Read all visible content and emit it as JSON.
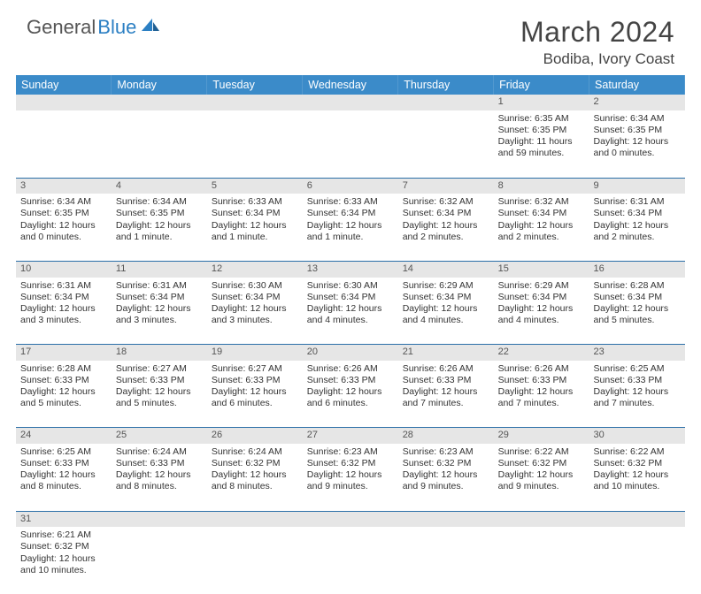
{
  "logo": {
    "part1": "General",
    "part2": "Blue"
  },
  "title": "March 2024",
  "location": "Bodiba, Ivory Coast",
  "colors": {
    "header_bg": "#3b8bc9",
    "header_text": "#ffffff",
    "row_divider": "#2b6fa8",
    "daynum_bg": "#e6e6e6",
    "text": "#333333",
    "logo_gray": "#555555",
    "logo_blue": "#2b7fc3"
  },
  "weekdays": [
    "Sunday",
    "Monday",
    "Tuesday",
    "Wednesday",
    "Thursday",
    "Friday",
    "Saturday"
  ],
  "weeks": [
    [
      null,
      null,
      null,
      null,
      null,
      {
        "n": "1",
        "l1": "Sunrise: 6:35 AM",
        "l2": "Sunset: 6:35 PM",
        "l3": "Daylight: 11 hours",
        "l4": "and 59 minutes."
      },
      {
        "n": "2",
        "l1": "Sunrise: 6:34 AM",
        "l2": "Sunset: 6:35 PM",
        "l3": "Daylight: 12 hours",
        "l4": "and 0 minutes."
      }
    ],
    [
      {
        "n": "3",
        "l1": "Sunrise: 6:34 AM",
        "l2": "Sunset: 6:35 PM",
        "l3": "Daylight: 12 hours",
        "l4": "and 0 minutes."
      },
      {
        "n": "4",
        "l1": "Sunrise: 6:34 AM",
        "l2": "Sunset: 6:35 PM",
        "l3": "Daylight: 12 hours",
        "l4": "and 1 minute."
      },
      {
        "n": "5",
        "l1": "Sunrise: 6:33 AM",
        "l2": "Sunset: 6:34 PM",
        "l3": "Daylight: 12 hours",
        "l4": "and 1 minute."
      },
      {
        "n": "6",
        "l1": "Sunrise: 6:33 AM",
        "l2": "Sunset: 6:34 PM",
        "l3": "Daylight: 12 hours",
        "l4": "and 1 minute."
      },
      {
        "n": "7",
        "l1": "Sunrise: 6:32 AM",
        "l2": "Sunset: 6:34 PM",
        "l3": "Daylight: 12 hours",
        "l4": "and 2 minutes."
      },
      {
        "n": "8",
        "l1": "Sunrise: 6:32 AM",
        "l2": "Sunset: 6:34 PM",
        "l3": "Daylight: 12 hours",
        "l4": "and 2 minutes."
      },
      {
        "n": "9",
        "l1": "Sunrise: 6:31 AM",
        "l2": "Sunset: 6:34 PM",
        "l3": "Daylight: 12 hours",
        "l4": "and 2 minutes."
      }
    ],
    [
      {
        "n": "10",
        "l1": "Sunrise: 6:31 AM",
        "l2": "Sunset: 6:34 PM",
        "l3": "Daylight: 12 hours",
        "l4": "and 3 minutes."
      },
      {
        "n": "11",
        "l1": "Sunrise: 6:31 AM",
        "l2": "Sunset: 6:34 PM",
        "l3": "Daylight: 12 hours",
        "l4": "and 3 minutes."
      },
      {
        "n": "12",
        "l1": "Sunrise: 6:30 AM",
        "l2": "Sunset: 6:34 PM",
        "l3": "Daylight: 12 hours",
        "l4": "and 3 minutes."
      },
      {
        "n": "13",
        "l1": "Sunrise: 6:30 AM",
        "l2": "Sunset: 6:34 PM",
        "l3": "Daylight: 12 hours",
        "l4": "and 4 minutes."
      },
      {
        "n": "14",
        "l1": "Sunrise: 6:29 AM",
        "l2": "Sunset: 6:34 PM",
        "l3": "Daylight: 12 hours",
        "l4": "and 4 minutes."
      },
      {
        "n": "15",
        "l1": "Sunrise: 6:29 AM",
        "l2": "Sunset: 6:34 PM",
        "l3": "Daylight: 12 hours",
        "l4": "and 4 minutes."
      },
      {
        "n": "16",
        "l1": "Sunrise: 6:28 AM",
        "l2": "Sunset: 6:34 PM",
        "l3": "Daylight: 12 hours",
        "l4": "and 5 minutes."
      }
    ],
    [
      {
        "n": "17",
        "l1": "Sunrise: 6:28 AM",
        "l2": "Sunset: 6:33 PM",
        "l3": "Daylight: 12 hours",
        "l4": "and 5 minutes."
      },
      {
        "n": "18",
        "l1": "Sunrise: 6:27 AM",
        "l2": "Sunset: 6:33 PM",
        "l3": "Daylight: 12 hours",
        "l4": "and 5 minutes."
      },
      {
        "n": "19",
        "l1": "Sunrise: 6:27 AM",
        "l2": "Sunset: 6:33 PM",
        "l3": "Daylight: 12 hours",
        "l4": "and 6 minutes."
      },
      {
        "n": "20",
        "l1": "Sunrise: 6:26 AM",
        "l2": "Sunset: 6:33 PM",
        "l3": "Daylight: 12 hours",
        "l4": "and 6 minutes."
      },
      {
        "n": "21",
        "l1": "Sunrise: 6:26 AM",
        "l2": "Sunset: 6:33 PM",
        "l3": "Daylight: 12 hours",
        "l4": "and 7 minutes."
      },
      {
        "n": "22",
        "l1": "Sunrise: 6:26 AM",
        "l2": "Sunset: 6:33 PM",
        "l3": "Daylight: 12 hours",
        "l4": "and 7 minutes."
      },
      {
        "n": "23",
        "l1": "Sunrise: 6:25 AM",
        "l2": "Sunset: 6:33 PM",
        "l3": "Daylight: 12 hours",
        "l4": "and 7 minutes."
      }
    ],
    [
      {
        "n": "24",
        "l1": "Sunrise: 6:25 AM",
        "l2": "Sunset: 6:33 PM",
        "l3": "Daylight: 12 hours",
        "l4": "and 8 minutes."
      },
      {
        "n": "25",
        "l1": "Sunrise: 6:24 AM",
        "l2": "Sunset: 6:33 PM",
        "l3": "Daylight: 12 hours",
        "l4": "and 8 minutes."
      },
      {
        "n": "26",
        "l1": "Sunrise: 6:24 AM",
        "l2": "Sunset: 6:32 PM",
        "l3": "Daylight: 12 hours",
        "l4": "and 8 minutes."
      },
      {
        "n": "27",
        "l1": "Sunrise: 6:23 AM",
        "l2": "Sunset: 6:32 PM",
        "l3": "Daylight: 12 hours",
        "l4": "and 9 minutes."
      },
      {
        "n": "28",
        "l1": "Sunrise: 6:23 AM",
        "l2": "Sunset: 6:32 PM",
        "l3": "Daylight: 12 hours",
        "l4": "and 9 minutes."
      },
      {
        "n": "29",
        "l1": "Sunrise: 6:22 AM",
        "l2": "Sunset: 6:32 PM",
        "l3": "Daylight: 12 hours",
        "l4": "and 9 minutes."
      },
      {
        "n": "30",
        "l1": "Sunrise: 6:22 AM",
        "l2": "Sunset: 6:32 PM",
        "l3": "Daylight: 12 hours",
        "l4": "and 10 minutes."
      }
    ],
    [
      {
        "n": "31",
        "l1": "Sunrise: 6:21 AM",
        "l2": "Sunset: 6:32 PM",
        "l3": "Daylight: 12 hours",
        "l4": "and 10 minutes."
      },
      null,
      null,
      null,
      null,
      null,
      null
    ]
  ]
}
